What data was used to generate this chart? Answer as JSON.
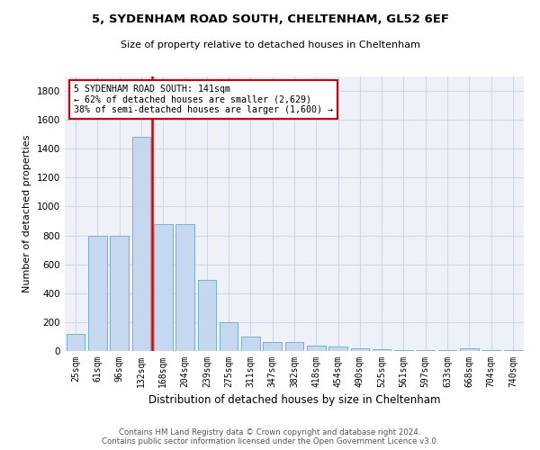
{
  "title1": "5, SYDENHAM ROAD SOUTH, CHELTENHAM, GL52 6EF",
  "title2": "Size of property relative to detached houses in Cheltenham",
  "xlabel": "Distribution of detached houses by size in Cheltenham",
  "ylabel": "Number of detached properties",
  "categories": [
    "25sqm",
    "61sqm",
    "96sqm",
    "132sqm",
    "168sqm",
    "204sqm",
    "239sqm",
    "275sqm",
    "311sqm",
    "347sqm",
    "382sqm",
    "418sqm",
    "454sqm",
    "490sqm",
    "525sqm",
    "561sqm",
    "597sqm",
    "633sqm",
    "668sqm",
    "704sqm",
    "740sqm"
  ],
  "values": [
    120,
    800,
    800,
    1480,
    880,
    880,
    490,
    200,
    100,
    65,
    65,
    35,
    30,
    20,
    15,
    8,
    8,
    8,
    20,
    8,
    8
  ],
  "bar_color": "#c5d8f0",
  "bar_edge_color": "#7aafd4",
  "marker_line_index": 3,
  "annotation_line1": "5 SYDENHAM ROAD SOUTH: 141sqm",
  "annotation_line2": "← 62% of detached houses are smaller (2,629)",
  "annotation_line3": "38% of semi-detached houses are larger (1,600) →",
  "annotation_box_color": "#ffffff",
  "annotation_box_edge": "#cc0000",
  "marker_line_color": "#cc0000",
  "grid_color": "#d0d8e8",
  "bg_color": "#eef2f8",
  "ylim": [
    0,
    1900
  ],
  "yticks": [
    0,
    200,
    400,
    600,
    800,
    1000,
    1200,
    1400,
    1600,
    1800
  ],
  "footer1": "Contains HM Land Registry data © Crown copyright and database right 2024.",
  "footer2": "Contains public sector information licensed under the Open Government Licence v3.0."
}
